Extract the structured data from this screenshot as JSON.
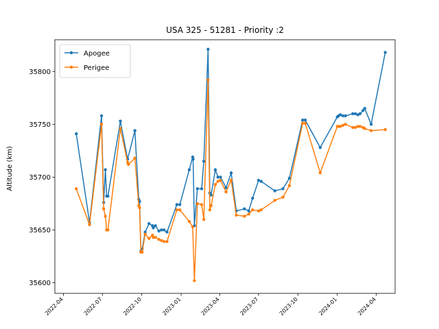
{
  "chart_data": {
    "type": "line",
    "title": "USA 325 - 51281 - Priority :2",
    "xlabel": "",
    "ylabel": "Altitude (km)",
    "xlim": [
      "2022-03-12",
      "2024-05-15"
    ],
    "ylim": [
      35590,
      35830
    ],
    "yticks": [
      35600,
      35650,
      35700,
      35750,
      35800
    ],
    "xticks": [
      "2022-04",
      "2022-07",
      "2022-10",
      "2023-01",
      "2023-04",
      "2023-07",
      "2023-10",
      "2024-01",
      "2024-04"
    ],
    "legend": "top-left",
    "grid": false,
    "series": [
      {
        "name": "Apogee",
        "color": "#1f77b4",
        "points": [
          [
            "2022-05-01",
            35741
          ],
          [
            "2022-06-01",
            35657
          ],
          [
            "2022-06-29",
            35758
          ],
          [
            "2022-07-04",
            35676
          ],
          [
            "2022-07-08",
            35707
          ],
          [
            "2022-07-11",
            35682
          ],
          [
            "2022-07-14",
            35682
          ],
          [
            "2022-08-12",
            35753
          ],
          [
            "2022-08-29",
            35717
          ],
          [
            "2022-09-15",
            35744
          ],
          [
            "2022-09-24",
            35679
          ],
          [
            "2022-09-26",
            35677
          ],
          [
            "2022-09-29",
            35630
          ],
          [
            "2022-10-02",
            35632
          ],
          [
            "2022-10-09",
            35648
          ],
          [
            "2022-10-18",
            35656
          ],
          [
            "2022-10-26",
            35654
          ],
          [
            "2022-10-28",
            35652
          ],
          [
            "2022-11-02",
            35654
          ],
          [
            "2022-11-10",
            35649
          ],
          [
            "2022-11-16",
            35650
          ],
          [
            "2022-11-22",
            35650
          ],
          [
            "2022-11-29",
            35648
          ],
          [
            "2022-12-22",
            35674
          ],
          [
            "2022-12-29",
            35674
          ],
          [
            "2023-01-20",
            35707
          ],
          [
            "2023-01-28",
            35719
          ],
          [
            "2023-01-29",
            35717
          ],
          [
            "2023-02-01",
            35654
          ],
          [
            "2023-02-08",
            35689
          ],
          [
            "2023-02-18",
            35689
          ],
          [
            "2023-02-23",
            35715
          ],
          [
            "2023-03-05",
            35821
          ],
          [
            "2023-03-09",
            35685
          ],
          [
            "2023-03-12",
            35683
          ],
          [
            "2023-03-22",
            35707
          ],
          [
            "2023-03-28",
            35700
          ],
          [
            "2023-04-03",
            35700
          ],
          [
            "2023-04-16",
            35690
          ],
          [
            "2023-04-28",
            35704
          ],
          [
            "2023-05-10",
            35668
          ],
          [
            "2023-05-29",
            35670
          ],
          [
            "2023-06-08",
            35668
          ],
          [
            "2023-06-17",
            35680
          ],
          [
            "2023-07-01",
            35697
          ],
          [
            "2023-07-07",
            35696
          ],
          [
            "2023-08-08",
            35687
          ],
          [
            "2023-08-27",
            35689
          ],
          [
            "2023-09-11",
            35699
          ],
          [
            "2023-10-12",
            35754
          ],
          [
            "2023-10-18",
            35754
          ],
          [
            "2023-11-22",
            35728
          ],
          [
            "2024-01-01",
            35757
          ],
          [
            "2024-01-04",
            35758
          ],
          [
            "2024-01-08",
            35759
          ],
          [
            "2024-01-14",
            35758
          ],
          [
            "2024-01-20",
            35758
          ],
          [
            "2024-02-06",
            35760
          ],
          [
            "2024-02-12",
            35760
          ],
          [
            "2024-02-18",
            35759
          ],
          [
            "2024-02-23",
            35760
          ],
          [
            "2024-03-01",
            35763
          ],
          [
            "2024-03-05",
            35765
          ],
          [
            "2024-03-20",
            35750
          ],
          [
            "2024-04-22",
            35818
          ]
        ]
      },
      {
        "name": "Perigee",
        "color": "#ff7f0e",
        "points": [
          [
            "2022-05-01",
            35689
          ],
          [
            "2022-06-01",
            35655
          ],
          [
            "2022-06-29",
            35750
          ],
          [
            "2022-07-04",
            35670
          ],
          [
            "2022-07-08",
            35663
          ],
          [
            "2022-07-11",
            35650
          ],
          [
            "2022-07-14",
            35650
          ],
          [
            "2022-08-12",
            35746
          ],
          [
            "2022-08-29",
            35714
          ],
          [
            "2022-08-31",
            35712
          ],
          [
            "2022-09-15",
            35718
          ],
          [
            "2022-09-24",
            35673
          ],
          [
            "2022-09-26",
            35671
          ],
          [
            "2022-09-29",
            35629
          ],
          [
            "2022-10-02",
            35629
          ],
          [
            "2022-10-09",
            35646
          ],
          [
            "2022-10-18",
            35642
          ],
          [
            "2022-10-26",
            35645
          ],
          [
            "2022-10-28",
            35643
          ],
          [
            "2022-11-02",
            35643
          ],
          [
            "2022-11-10",
            35641
          ],
          [
            "2022-11-16",
            35640
          ],
          [
            "2022-11-22",
            35639
          ],
          [
            "2022-11-29",
            35639
          ],
          [
            "2022-12-22",
            35669
          ],
          [
            "2022-12-29",
            35669
          ],
          [
            "2023-01-20",
            35658
          ],
          [
            "2023-01-28",
            35653
          ],
          [
            "2023-02-01",
            35602
          ],
          [
            "2023-02-08",
            35675
          ],
          [
            "2023-02-18",
            35674
          ],
          [
            "2023-02-23",
            35660
          ],
          [
            "2023-03-05",
            35792
          ],
          [
            "2023-03-09",
            35669
          ],
          [
            "2023-03-12",
            35673
          ],
          [
            "2023-03-22",
            35693
          ],
          [
            "2023-03-28",
            35696
          ],
          [
            "2023-04-03",
            35697
          ],
          [
            "2023-04-16",
            35686
          ],
          [
            "2023-04-28",
            35697
          ],
          [
            "2023-05-10",
            35664
          ],
          [
            "2023-05-29",
            35663
          ],
          [
            "2023-06-08",
            35665
          ],
          [
            "2023-06-17",
            35669
          ],
          [
            "2023-07-01",
            35668
          ],
          [
            "2023-07-07",
            35669
          ],
          [
            "2023-08-08",
            35678
          ],
          [
            "2023-08-27",
            35681
          ],
          [
            "2023-09-11",
            35692
          ],
          [
            "2023-10-12",
            35751
          ],
          [
            "2023-10-18",
            35751
          ],
          [
            "2023-11-22",
            35704
          ],
          [
            "2024-01-01",
            35748
          ],
          [
            "2024-01-04",
            35748
          ],
          [
            "2024-01-08",
            35748
          ],
          [
            "2024-01-14",
            35749
          ],
          [
            "2024-01-20",
            35750
          ],
          [
            "2024-02-06",
            35747
          ],
          [
            "2024-02-12",
            35747
          ],
          [
            "2024-02-18",
            35748
          ],
          [
            "2024-02-23",
            35748
          ],
          [
            "2024-03-01",
            35747
          ],
          [
            "2024-03-05",
            35746
          ],
          [
            "2024-03-20",
            35744
          ],
          [
            "2024-04-22",
            35745
          ]
        ]
      }
    ]
  }
}
